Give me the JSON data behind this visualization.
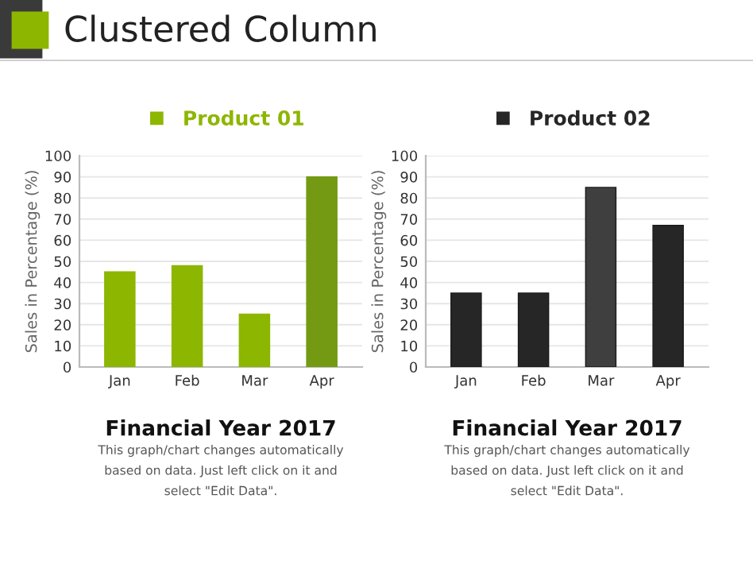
{
  "chart_data": [
    {
      "type": "other",
      "title": "Clustered Column"
    },
    {
      "type": "bar",
      "categories": [
        "Jan",
        "Feb",
        "Mar",
        "Apr"
      ],
      "xlabel": "Financial Year 2017",
      "ylabel": "Sales in Percentage (%)",
      "series": [
        {
          "name": "Product 01",
          "colors": [
            "#8db600",
            "#8db600",
            "#8db600",
            "#739a12"
          ],
          "color": "#8db600",
          "values": [
            45,
            48,
            25,
            90
          ]
        }
      ],
      "ylim": [
        0,
        100
      ],
      "yticks": [
        0,
        10,
        20,
        30,
        40,
        50,
        60,
        70,
        80,
        90,
        100
      ],
      "grid": "y",
      "legend": "top",
      "annotations": [
        "This graph/chart changes automatically\nbased on data. Just left click on it and\nselect \"Edit Data\"."
      ]
    },
    {
      "type": "bar",
      "categories": [
        "Jan",
        "Feb",
        "Mar",
        "Apr"
      ],
      "xlabel": "Financial Year 2017",
      "ylabel": "Sales in Percentage (%)",
      "series": [
        {
          "name": "Product 02",
          "colors": [
            "#262626",
            "#262626",
            "#3f3f3f",
            "#262626"
          ],
          "color": "#262626",
          "values": [
            35,
            35,
            85,
            67
          ]
        }
      ],
      "ylim": [
        0,
        100
      ],
      "yticks": [
        0,
        10,
        20,
        30,
        40,
        50,
        60,
        70,
        80,
        90,
        100
      ],
      "grid": "y",
      "legend": "top",
      "annotations": [
        "This graph/chart changes automatically\nbased on data. Just left click on it and\nselect \"Edit Data\"."
      ]
    }
  ]
}
